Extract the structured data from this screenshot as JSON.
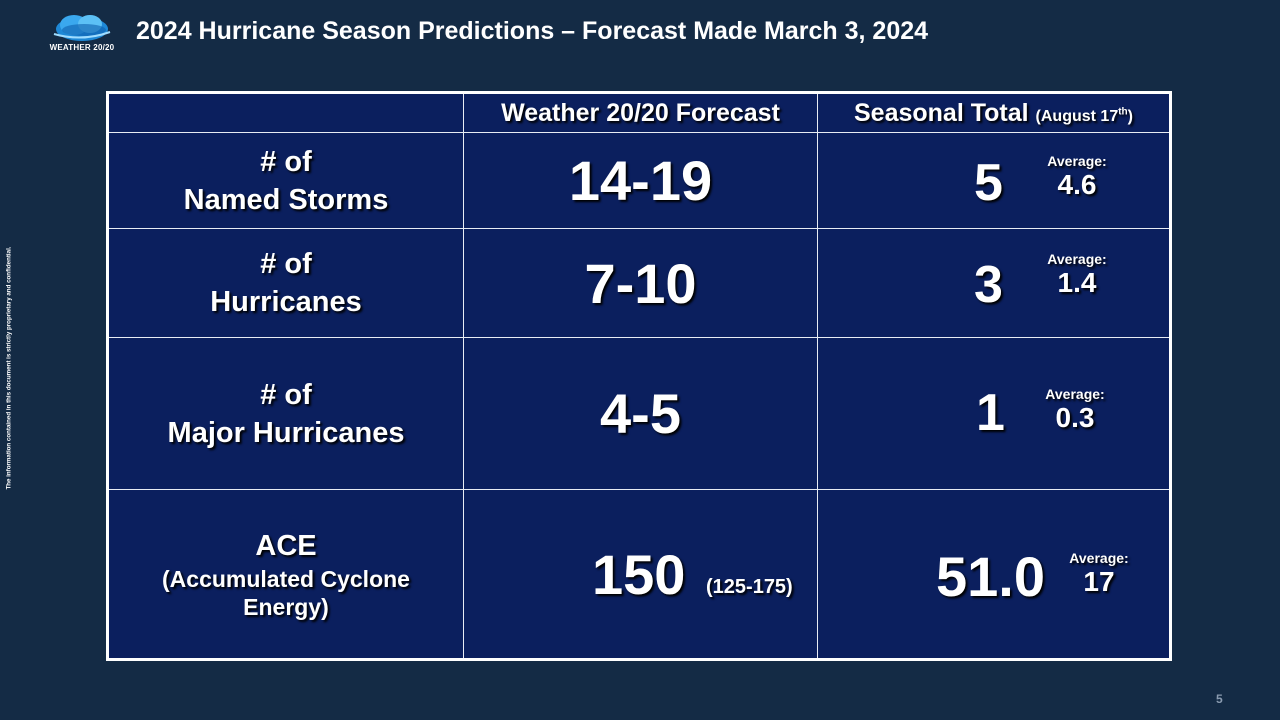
{
  "logo": {
    "text": "WEATHER 20/20"
  },
  "title": "2024 Hurricane Season Predictions – Forecast Made March 3, 2024",
  "side_note": "The information contained in this document is strictly proprietary and confidential.",
  "page_number": "5",
  "table": {
    "headers": {
      "forecast": "Weather 20/20 Forecast",
      "seasonal": "Seasonal Total",
      "seasonal_note": "(August 17",
      "seasonal_note_sup": "th",
      "seasonal_note_end": ")"
    },
    "rows": [
      {
        "label_line1": "# of",
        "label_line2": "Named Storms",
        "forecast": "14-19",
        "seasonal": "5",
        "average_label": "Average:",
        "average": "4.6"
      },
      {
        "label_line1": "# of",
        "label_line2": "Hurricanes",
        "forecast": "7-10",
        "seasonal": "3",
        "average_label": "Average:",
        "average": "1.4"
      },
      {
        "label_line1": "# of",
        "label_line2": "Major Hurricanes",
        "forecast": "4-5",
        "seasonal": "1",
        "average_label": "Average:",
        "average": "0.3"
      },
      {
        "label_line1": "ACE",
        "label_line2": "(Accumulated Cyclone",
        "label_line3": "Energy)",
        "forecast": "150",
        "forecast_range": "(125-175)",
        "seasonal": "51.0",
        "average_label": "Average:",
        "average": "17"
      }
    ]
  }
}
